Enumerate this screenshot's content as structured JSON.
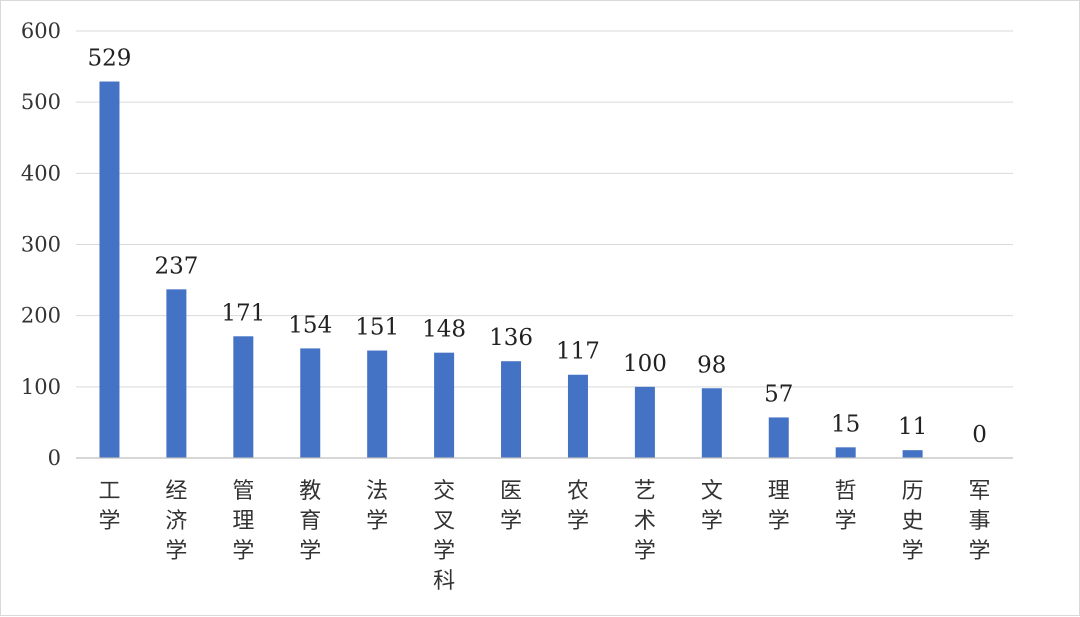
{
  "chart_data": {
    "type": "bar",
    "categories": [
      "工学",
      "经济学",
      "管理学",
      "教育学",
      "法学",
      "交叉学科",
      "医学",
      "农学",
      "艺术学",
      "文学",
      "理学",
      "哲学",
      "历史学",
      "军事学"
    ],
    "values": [
      529,
      237,
      171,
      154,
      151,
      148,
      136,
      117,
      100,
      98,
      57,
      15,
      11,
      0
    ],
    "data_labels": [
      "529",
      "237",
      "171",
      "154",
      "151",
      "148",
      "136",
      "117",
      "100",
      "98",
      "57",
      "15",
      "11",
      "0"
    ],
    "yticks": [
      "0",
      "100",
      "200",
      "300",
      "400",
      "500",
      "600"
    ],
    "ylim": [
      0,
      600
    ],
    "grid": true,
    "legend": "none",
    "bar_color": "#4472C4"
  }
}
